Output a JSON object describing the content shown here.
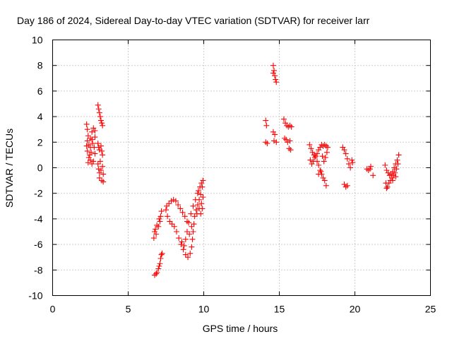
{
  "chart_data": {
    "type": "scatter",
    "title": "Day 186 of 2024, Sidereal Day-to-day VTEC variation (SDTVAR) for receiver larr",
    "xlabel": "GPS time / hours",
    "ylabel": "SDTVAR / TECUs",
    "xlim": [
      0,
      25
    ],
    "ylim": [
      -10,
      10
    ],
    "xticks": [
      "0",
      "5",
      "10",
      "15",
      "20",
      "25"
    ],
    "yticks": [
      "-10",
      "-8",
      "-6",
      "-4",
      "-2",
      "0",
      "2",
      "4",
      "6",
      "8",
      "10"
    ],
    "grid": true,
    "marker": "+",
    "color": "#ff0000",
    "series": [
      {
        "points": [
          [
            2.25,
            3.4
          ],
          [
            2.3,
            3.0
          ],
          [
            2.35,
            2.5
          ],
          [
            2.3,
            2.1
          ],
          [
            2.25,
            1.7
          ],
          [
            2.3,
            1.3
          ],
          [
            2.4,
            1.8
          ],
          [
            2.5,
            2.3
          ],
          [
            2.6,
            2.8
          ],
          [
            2.7,
            3.1
          ],
          [
            2.8,
            2.9
          ],
          [
            2.6,
            2.2
          ],
          [
            2.5,
            1.6
          ],
          [
            2.45,
            1.0
          ],
          [
            2.5,
            0.6
          ],
          [
            2.6,
            0.3
          ],
          [
            2.7,
            0.5
          ],
          [
            2.8,
            1.1
          ],
          [
            2.75,
            1.6
          ],
          [
            2.4,
            0.8
          ],
          [
            2.35,
            0.4
          ],
          [
            2.55,
            1.2
          ],
          [
            2.65,
            1.9
          ],
          [
            2.8,
            2.4
          ],
          [
            3.0,
            4.9
          ],
          [
            3.05,
            4.6
          ],
          [
            3.1,
            4.3
          ],
          [
            3.15,
            4.0
          ],
          [
            3.2,
            3.7
          ],
          [
            3.25,
            3.5
          ],
          [
            3.3,
            3.3
          ],
          [
            3.0,
            1.9
          ],
          [
            3.05,
            1.6
          ],
          [
            3.1,
            1.4
          ],
          [
            3.2,
            1.7
          ],
          [
            3.25,
            1.3
          ],
          [
            3.3,
            1.0
          ],
          [
            3.0,
            0.3
          ],
          [
            3.05,
            -0.1
          ],
          [
            3.1,
            -0.4
          ],
          [
            3.2,
            -0.2
          ],
          [
            3.3,
            0.1
          ],
          [
            3.35,
            -0.5
          ],
          [
            3.1,
            -0.8
          ],
          [
            3.25,
            -1.0
          ],
          [
            3.35,
            -1.1
          ],
          [
            3.15,
            0.5
          ]
        ]
      },
      {
        "points": [
          [
            6.7,
            -5.5
          ],
          [
            6.75,
            -5.0
          ],
          [
            6.8,
            -4.8
          ],
          [
            6.9,
            -4.5
          ],
          [
            7.0,
            -4.6
          ],
          [
            7.1,
            -4.2
          ],
          [
            7.15,
            -3.8
          ],
          [
            7.2,
            -3.4
          ],
          [
            6.85,
            -5.2
          ],
          [
            7.05,
            -4.0
          ],
          [
            6.75,
            -8.4
          ],
          [
            6.9,
            -8.2
          ],
          [
            7.0,
            -7.9
          ],
          [
            7.1,
            -7.5
          ],
          [
            7.15,
            -7.1
          ],
          [
            7.2,
            -6.8
          ],
          [
            7.25,
            -6.7
          ],
          [
            7.05,
            -7.7
          ],
          [
            6.85,
            -8.3
          ],
          [
            7.55,
            -3.0
          ],
          [
            7.7,
            -2.8
          ],
          [
            7.85,
            -2.6
          ],
          [
            8.0,
            -2.5
          ],
          [
            8.15,
            -2.6
          ],
          [
            8.3,
            -2.9
          ],
          [
            8.45,
            -3.2
          ],
          [
            8.6,
            -3.5
          ],
          [
            8.75,
            -3.8
          ],
          [
            8.9,
            -4.2
          ],
          [
            7.5,
            -3.3
          ],
          [
            7.6,
            -3.8
          ],
          [
            7.75,
            -4.2
          ],
          [
            7.9,
            -4.4
          ],
          [
            8.05,
            -4.6
          ],
          [
            8.2,
            -5.0
          ],
          [
            8.35,
            -5.5
          ],
          [
            8.5,
            -6.0
          ],
          [
            8.65,
            -6.4
          ],
          [
            8.8,
            -6.8
          ],
          [
            8.95,
            -7.0
          ],
          [
            9.1,
            -6.7
          ],
          [
            9.2,
            -6.2
          ],
          [
            9.25,
            -5.6
          ],
          [
            9.3,
            -5.0
          ],
          [
            9.35,
            -4.4
          ],
          [
            9.4,
            -3.8
          ],
          [
            9.5,
            -3.3
          ],
          [
            9.6,
            -2.9
          ],
          [
            9.7,
            -2.5
          ],
          [
            9.8,
            -2.1
          ],
          [
            9.9,
            -1.5
          ],
          [
            9.95,
            -1.0
          ],
          [
            9.75,
            -1.5
          ],
          [
            9.6,
            -2.0
          ],
          [
            9.45,
            -2.5
          ],
          [
            9.3,
            -3.0
          ],
          [
            9.15,
            -3.6
          ],
          [
            9.0,
            -4.3
          ],
          [
            8.9,
            -5.0
          ],
          [
            8.8,
            -5.6
          ],
          [
            8.7,
            -6.1
          ],
          [
            9.05,
            -5.2
          ],
          [
            9.2,
            -4.6
          ],
          [
            9.55,
            -3.6
          ],
          [
            9.7,
            -3.2
          ],
          [
            9.85,
            -2.8
          ],
          [
            9.95,
            -2.3
          ],
          [
            9.9,
            -3.2
          ],
          [
            9.8,
            -3.6
          ],
          [
            8.55,
            -5.8
          ],
          [
            9.65,
            -1.8
          ],
          [
            9.85,
            -1.2
          ]
        ]
      },
      {
        "points": [
          [
            14.6,
            8.0
          ],
          [
            14.65,
            7.6
          ],
          [
            14.7,
            7.2
          ],
          [
            14.75,
            6.9
          ],
          [
            14.8,
            6.7
          ],
          [
            14.6,
            7.4
          ],
          [
            14.1,
            3.7
          ],
          [
            14.15,
            3.3
          ],
          [
            14.1,
            2.0
          ],
          [
            14.2,
            1.9
          ],
          [
            14.6,
            2.8
          ],
          [
            14.7,
            2.6
          ],
          [
            14.65,
            2.1
          ],
          [
            14.8,
            2.0
          ],
          [
            15.3,
            3.8
          ],
          [
            15.4,
            3.5
          ],
          [
            15.5,
            3.3
          ],
          [
            15.6,
            3.2
          ],
          [
            15.7,
            3.3
          ],
          [
            15.8,
            3.2
          ],
          [
            15.35,
            2.3
          ],
          [
            15.45,
            2.2
          ],
          [
            15.55,
            2.0
          ],
          [
            15.7,
            2.1
          ],
          [
            15.65,
            1.5
          ],
          [
            15.75,
            1.4
          ]
        ]
      },
      {
        "points": [
          [
            17.0,
            1.8
          ],
          [
            17.1,
            1.5
          ],
          [
            17.2,
            1.2
          ],
          [
            17.3,
            1.0
          ],
          [
            17.4,
            0.9
          ],
          [
            17.5,
            1.1
          ],
          [
            17.6,
            1.4
          ],
          [
            17.7,
            1.6
          ],
          [
            17.8,
            1.8
          ],
          [
            17.9,
            1.7
          ],
          [
            18.0,
            1.8
          ],
          [
            18.1,
            1.7
          ],
          [
            18.2,
            1.6
          ],
          [
            17.05,
            0.6
          ],
          [
            17.15,
            0.3
          ],
          [
            17.25,
            0.5
          ],
          [
            17.35,
            0.8
          ],
          [
            17.5,
            0.5
          ],
          [
            17.6,
            0.2
          ],
          [
            17.7,
            -0.2
          ],
          [
            17.8,
            -0.5
          ],
          [
            17.9,
            -0.8
          ],
          [
            18.0,
            -1.0
          ],
          [
            18.1,
            -1.4
          ],
          [
            17.85,
            0.9
          ],
          [
            17.95,
            0.5
          ],
          [
            18.05,
            0.8
          ],
          [
            18.15,
            1.2
          ],
          [
            17.6,
            -0.5
          ],
          [
            17.75,
            -0.3
          ],
          [
            19.2,
            1.6
          ],
          [
            19.3,
            1.4
          ],
          [
            19.4,
            1.1
          ],
          [
            19.5,
            0.7
          ],
          [
            19.6,
            0.3
          ],
          [
            19.7,
            0.0
          ],
          [
            19.8,
            0.6
          ],
          [
            19.85,
            0.4
          ],
          [
            19.3,
            -1.3
          ],
          [
            19.4,
            -1.5
          ],
          [
            19.5,
            -1.4
          ],
          [
            20.8,
            -0.1
          ],
          [
            20.9,
            -0.2
          ],
          [
            21.0,
            -0.1
          ],
          [
            21.05,
            0.1
          ],
          [
            21.2,
            -0.6
          ],
          [
            22.0,
            0.2
          ],
          [
            22.1,
            -0.2
          ],
          [
            22.2,
            -0.4
          ],
          [
            22.3,
            -0.6
          ],
          [
            22.4,
            -0.5
          ],
          [
            22.5,
            -0.3
          ],
          [
            22.6,
            0.0
          ],
          [
            22.7,
            0.3
          ],
          [
            22.8,
            0.6
          ],
          [
            22.9,
            1.0
          ],
          [
            22.05,
            -1.2
          ],
          [
            22.15,
            -1.5
          ],
          [
            22.25,
            -1.2
          ],
          [
            22.35,
            -1.0
          ],
          [
            22.45,
            -0.8
          ],
          [
            22.55,
            -0.6
          ],
          [
            22.65,
            -0.4
          ],
          [
            22.75,
            -0.1
          ],
          [
            22.85,
            0.3
          ],
          [
            22.1,
            -1.6
          ],
          [
            22.5,
            -1.0
          ],
          [
            22.7,
            -0.7
          ]
        ]
      }
    ]
  }
}
